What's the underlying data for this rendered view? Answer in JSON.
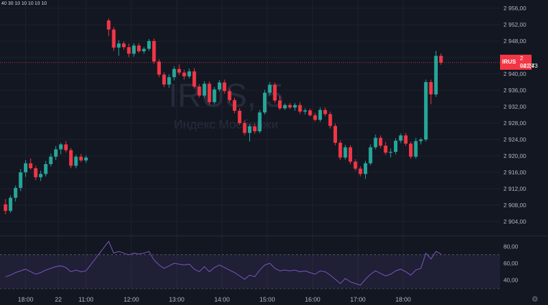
{
  "header": {
    "ohlc_text": "40 30 10 10 10 10 10"
  },
  "watermark": {
    "symbol": "IRUS, 5",
    "name": "Индекс Мосбиржи"
  },
  "badge": {
    "symbol": "IRUS",
    "price": "2 942,73",
    "countdown": "02:24"
  },
  "colors": {
    "up": "#26a69a",
    "down": "#f23645",
    "rsi": "#7e57c2",
    "background": "#131722",
    "grid": "#1e222d",
    "text": "#b2b5be"
  },
  "icons": {
    "settings": "gear-icon"
  },
  "chart_data": [
    {
      "type": "candlestick",
      "interval": "5 minutes",
      "grid": true,
      "y_axis_side": "right",
      "ylim": [
        2901,
        2957
      ],
      "yticks": [
        "2 956,00",
        "2 952,00",
        "2 948,00",
        "2 944,00",
        "2 940,00",
        "2 936,00",
        "2 932,00",
        "2 928,00",
        "2 924,00",
        "2 920,00",
        "2 916,00",
        "2 912,00",
        "2 908,00",
        "2 904,00"
      ],
      "ytick_values": [
        2956,
        2952,
        2948,
        2944,
        2940,
        2936,
        2932,
        2928,
        2924,
        2920,
        2916,
        2912,
        2908,
        2904
      ],
      "xticks": [
        "17:00",
        "18:00",
        "22",
        "11:00",
        "12:00",
        "13:00",
        "14:00",
        "15:00",
        "16:00",
        "17:00",
        "18:00"
      ],
      "xtick_index": [
        -8,
        4,
        10.5,
        16,
        25,
        34,
        43,
        52,
        61,
        70,
        79
      ],
      "current_price": 2942.73,
      "candles": [
        [
          2908.2,
          2909.5,
          2905.8,
          2906.6
        ],
        [
          2906.6,
          2910.4,
          2906.1,
          2909.8
        ],
        [
          2909.8,
          2912.8,
          2908.9,
          2912.2
        ],
        [
          2912.2,
          2916.8,
          2911.4,
          2916.0
        ],
        [
          2916.0,
          2919.0,
          2914.9,
          2918.2
        ],
        [
          2918.2,
          2919.4,
          2916.6,
          2917.0
        ],
        [
          2917.0,
          2917.6,
          2914.1,
          2914.8
        ],
        [
          2914.8,
          2916.4,
          2913.9,
          2915.6
        ],
        [
          2915.6,
          2918.8,
          2915.0,
          2918.0
        ],
        [
          2918.0,
          2920.6,
          2917.4,
          2919.8
        ],
        [
          2919.8,
          2922.4,
          2919.0,
          2921.6
        ],
        [
          2921.6,
          2923.2,
          2920.4,
          2922.8
        ],
        [
          2922.8,
          2923.6,
          2920.8,
          2921.4
        ],
        [
          2921.4,
          2921.9,
          2917.0,
          2917.6
        ],
        [
          2917.6,
          2920.3,
          2917.0,
          2919.8
        ],
        [
          2919.8,
          2920.5,
          2918.5,
          2918.9
        ],
        [
          2918.9,
          2920.1,
          2918.3,
          2919.6
        ],
        [
          2953.0,
          2953.5,
          2949.2,
          2950.8
        ],
        [
          2950.8,
          2951.4,
          2945.6,
          2946.4
        ],
        [
          2946.4,
          2948.2,
          2944.4,
          2947.4
        ],
        [
          2947.4,
          2947.9,
          2945.9,
          2946.5
        ],
        [
          2946.5,
          2947.4,
          2944.1,
          2944.9
        ],
        [
          2944.9,
          2947.5,
          2944.2,
          2946.9
        ],
        [
          2946.9,
          2947.5,
          2945.1,
          2945.5
        ],
        [
          2945.5,
          2946.6,
          2944.9,
          2946.1
        ],
        [
          2946.1,
          2948.5,
          2945.6,
          2948.0
        ],
        [
          2948.0,
          2948.6,
          2942.4,
          2943.0
        ],
        [
          2943.0,
          2943.6,
          2939.2,
          2939.8
        ],
        [
          2939.8,
          2940.4,
          2936.8,
          2937.4
        ],
        [
          2937.4,
          2939.9,
          2936.6,
          2939.2
        ],
        [
          2939.2,
          2941.9,
          2938.4,
          2941.2
        ],
        [
          2941.2,
          2942.3,
          2939.7,
          2940.3
        ],
        [
          2940.3,
          2941.0,
          2938.6,
          2939.4
        ],
        [
          2939.4,
          2941.3,
          2938.9,
          2940.6
        ],
        [
          2940.6,
          2941.4,
          2936.4,
          2936.9
        ],
        [
          2936.9,
          2937.5,
          2934.2,
          2934.7
        ],
        [
          2934.7,
          2938.2,
          2934.1,
          2937.6
        ],
        [
          2937.6,
          2938.2,
          2932.5,
          2933.1
        ],
        [
          2933.1,
          2936.8,
          2932.6,
          2936.2
        ],
        [
          2936.2,
          2938.5,
          2935.7,
          2937.9
        ],
        [
          2937.9,
          2938.6,
          2935.2,
          2935.8
        ],
        [
          2935.8,
          2936.4,
          2933.0,
          2933.6
        ],
        [
          2933.6,
          2934.2,
          2930.4,
          2931.0
        ],
        [
          2931.0,
          2931.6,
          2927.5,
          2928.0
        ],
        [
          2928.0,
          2928.6,
          2925.0,
          2925.6
        ],
        [
          2925.6,
          2927.8,
          2923.5,
          2927.2
        ],
        [
          2927.2,
          2927.8,
          2925.4,
          2926.0
        ],
        [
          2926.0,
          2931.2,
          2925.5,
          2930.6
        ],
        [
          2930.6,
          2936.1,
          2930.1,
          2935.4
        ],
        [
          2935.4,
          2938.0,
          2934.8,
          2937.3
        ],
        [
          2937.3,
          2937.9,
          2932.9,
          2933.5
        ],
        [
          2933.5,
          2934.6,
          2931.2,
          2931.6
        ],
        [
          2931.6,
          2932.8,
          2931.2,
          2932.4
        ],
        [
          2932.4,
          2932.9,
          2931.4,
          2931.8
        ],
        [
          2931.8,
          2932.9,
          2931.0,
          2932.4
        ],
        [
          2932.4,
          2933.1,
          2930.2,
          2930.8
        ],
        [
          2930.8,
          2931.6,
          2930.1,
          2931.1
        ],
        [
          2931.1,
          2931.5,
          2929.6,
          2929.9
        ],
        [
          2929.9,
          2930.5,
          2928.4,
          2928.8
        ],
        [
          2928.8,
          2931.8,
          2928.3,
          2931.2
        ],
        [
          2931.2,
          2931.8,
          2929.7,
          2930.2
        ],
        [
          2930.2,
          2930.8,
          2926.7,
          2927.3
        ],
        [
          2927.3,
          2927.9,
          2922.6,
          2923.2
        ],
        [
          2923.2,
          2923.8,
          2919.0,
          2919.6
        ],
        [
          2919.6,
          2922.7,
          2919.1,
          2922.1
        ],
        [
          2922.1,
          2922.6,
          2918.0,
          2918.6
        ],
        [
          2918.6,
          2919.2,
          2916.4,
          2916.9
        ],
        [
          2916.9,
          2917.5,
          2915.0,
          2915.6
        ],
        [
          2915.6,
          2918.8,
          2914.4,
          2918.2
        ],
        [
          2918.2,
          2922.8,
          2917.7,
          2922.1
        ],
        [
          2922.1,
          2925.2,
          2921.6,
          2924.4
        ],
        [
          2924.4,
          2925.0,
          2921.9,
          2922.5
        ],
        [
          2922.5,
          2923.4,
          2920.3,
          2920.8
        ],
        [
          2920.8,
          2921.8,
          2919.6,
          2921.0
        ],
        [
          2921.0,
          2924.3,
          2920.4,
          2923.7
        ],
        [
          2923.7,
          2925.5,
          2923.1,
          2925.0
        ],
        [
          2925.0,
          2925.6,
          2922.4,
          2923.0
        ],
        [
          2923.0,
          2923.5,
          2919.3,
          2919.8
        ],
        [
          2919.8,
          2924.4,
          2919.3,
          2923.6
        ],
        [
          2923.6,
          2924.4,
          2922.8,
          2924.0
        ],
        [
          2924.0,
          2938.6,
          2923.5,
          2938.0
        ],
        [
          2938.0,
          2938.6,
          2932.6,
          2935.0
        ],
        [
          2935.0,
          2945.6,
          2934.4,
          2944.4
        ],
        [
          2944.4,
          2945.0,
          2942.2,
          2942.73
        ]
      ]
    },
    {
      "type": "line",
      "name": "RSI",
      "ylim": [
        30,
        90
      ],
      "yticks": [
        "80,00",
        "60,00",
        "40,00"
      ],
      "ytick_values": [
        80,
        60,
        40
      ],
      "band": [
        30,
        70
      ],
      "values": [
        44,
        46,
        49,
        51,
        53,
        50,
        47,
        49,
        52,
        54,
        56,
        57,
        55,
        50,
        52,
        50,
        51,
        86,
        72,
        74,
        72,
        70,
        72,
        71,
        72,
        74,
        64,
        58,
        54,
        57,
        60,
        59,
        58,
        59,
        53,
        50,
        56,
        50,
        55,
        58,
        55,
        52,
        49,
        45,
        41,
        46,
        44,
        52,
        58,
        60,
        54,
        51,
        52,
        51,
        52,
        50,
        51,
        49,
        47,
        51,
        50,
        46,
        41,
        36,
        42,
        38,
        36,
        34,
        41,
        47,
        51,
        48,
        45,
        47,
        51,
        53,
        50,
        46,
        52,
        54,
        72,
        65,
        74,
        71
      ]
    }
  ]
}
